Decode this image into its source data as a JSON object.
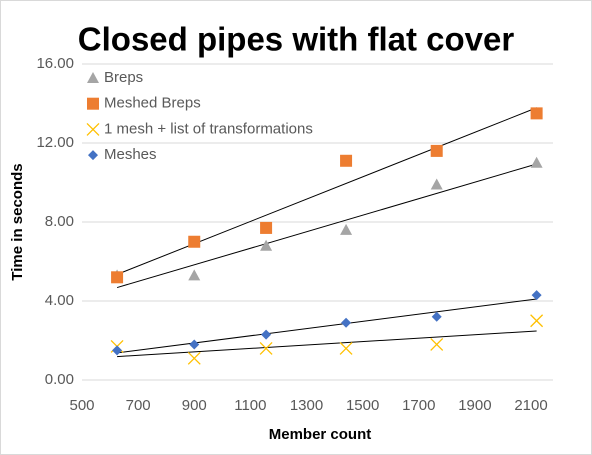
{
  "chart_data": {
    "type": "scatter",
    "title": "Closed pipes with flat cover",
    "x_label": "Member count",
    "y_label": "Time in seconds",
    "xlim": [
      500,
      2100
    ],
    "xticks": [
      500,
      700,
      900,
      1100,
      1300,
      1500,
      1700,
      1900,
      2100
    ],
    "ylim": [
      0,
      16
    ],
    "yticks": [
      {
        "value": 0,
        "label": "0.00"
      },
      {
        "value": 4,
        "label": "4.00"
      },
      {
        "value": 8,
        "label": "8.00"
      },
      {
        "value": 12,
        "label": "12.00"
      },
      {
        "value": 16,
        "label": "16.00"
      }
    ],
    "grid": true,
    "trendline": "linear",
    "legend": "top-left",
    "series": [
      {
        "name": "Breps",
        "color": "#a5a5a5",
        "marker": "triangle",
        "x": [
          625,
          900,
          1156,
          1441,
          1764,
          2120
        ],
        "values": [
          5.3,
          5.3,
          6.8,
          7.6,
          9.9,
          11.0
        ]
      },
      {
        "name": "Meshed Breps",
        "color": "#ed7d31",
        "marker": "square",
        "x": [
          625,
          900,
          1156,
          1441,
          1764,
          2120
        ],
        "values": [
          5.2,
          7.0,
          7.7,
          11.1,
          11.6,
          13.5
        ]
      },
      {
        "name": "1 mesh + list of transformations",
        "color": "#ffc000",
        "marker": "cross",
        "x": [
          625,
          900,
          1156,
          1441,
          1764,
          2120
        ],
        "values": [
          1.7,
          1.1,
          1.6,
          1.6,
          1.8,
          3.0
        ]
      },
      {
        "name": "Meshes",
        "color": "#4472c4",
        "marker": "diamond",
        "x": [
          625,
          900,
          1156,
          1441,
          1764,
          2120
        ],
        "values": [
          1.5,
          1.8,
          2.3,
          2.9,
          3.2,
          4.3
        ]
      }
    ]
  }
}
